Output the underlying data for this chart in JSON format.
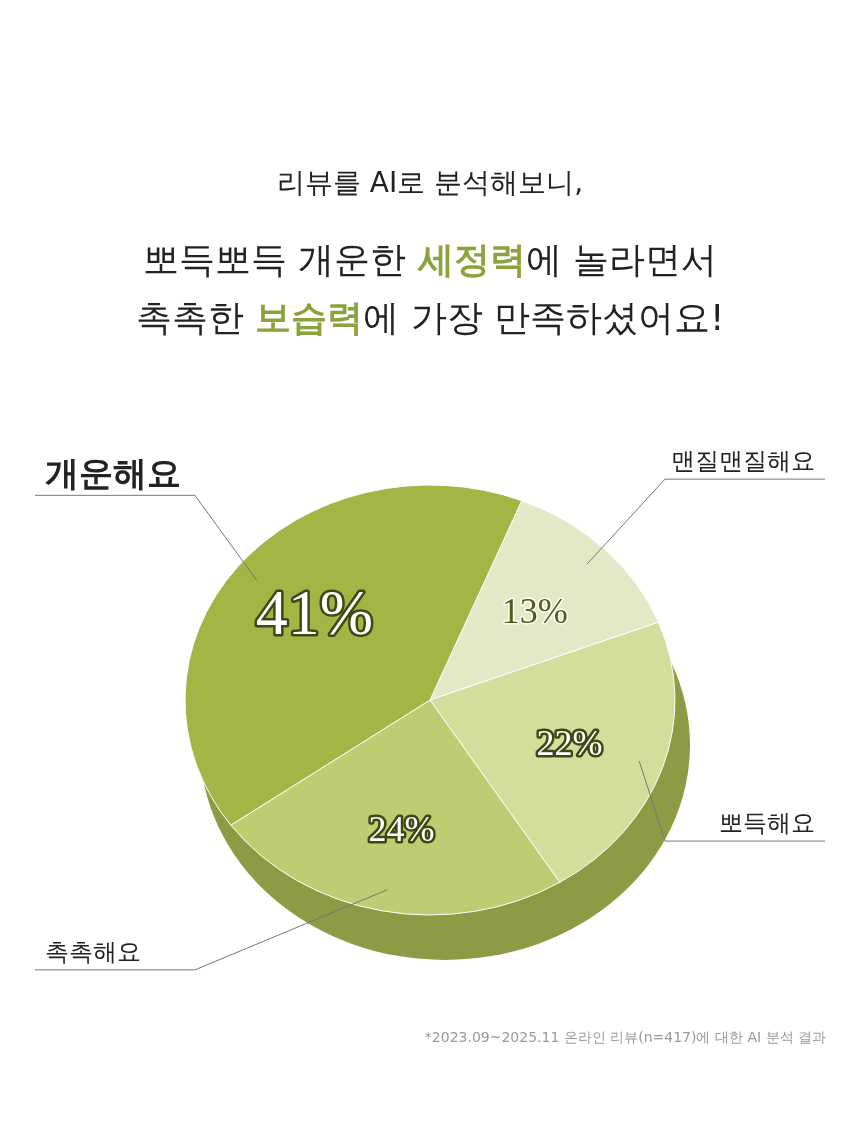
{
  "chart_data": {
    "type": "pie",
    "title": "리뷰를 AI로 분석해보니,",
    "subtitle": "뽀득뽀득 개운한 **세정력**에 놀라면서\n촉촉한 **보습력**에 가장 만족하셨어요!",
    "categories": [
      "맨질맨질해요",
      "뽀득해요",
      "촉촉해요",
      "개운해요"
    ],
    "values": [
      13,
      22,
      24,
      41
    ],
    "colors": [
      "#e3e8c6",
      "#d3dd9c",
      "#bfcd72",
      "#a3b545"
    ],
    "value_labels": [
      "13%",
      "22%",
      "24%",
      "41%"
    ],
    "annotations": [
      "*2023.09~2025.11 온라인 리뷰(n=417)에 대한 AI 분석 결과"
    ]
  }
}
